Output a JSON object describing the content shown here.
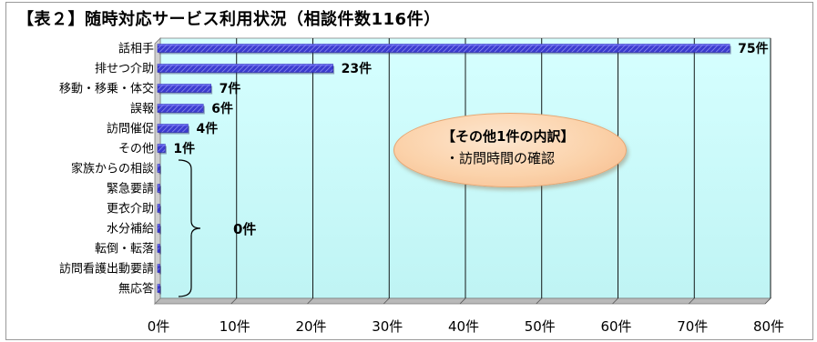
{
  "chart_data": {
    "type": "bar",
    "orientation": "horizontal",
    "title": "【表２】随時対応サービス利用状況（相談件数116件）",
    "categories": [
      "話相手",
      "排せつ介助",
      "移動・移乗・体交",
      "誤報",
      "訪問催促",
      "その他",
      "家族からの相談",
      "緊急要請",
      "更衣介助",
      "水分補給",
      "転倒・転落",
      "訪問看護出動要請",
      "無応答"
    ],
    "values": [
      75,
      23,
      7,
      6,
      4,
      1,
      0,
      0,
      0,
      0,
      0,
      0,
      0
    ],
    "value_labels": [
      "75件",
      "23件",
      "7件",
      "6件",
      "4件",
      "1件",
      "",
      "",
      "",
      "",
      "",
      "",
      ""
    ],
    "xlim": [
      0,
      80
    ],
    "x_ticks": [
      0,
      10,
      20,
      30,
      40,
      50,
      60,
      70,
      80
    ],
    "x_tick_labels": [
      "0件",
      "10件",
      "20件",
      "30件",
      "40件",
      "50件",
      "60件",
      "70件",
      "80件"
    ],
    "grid": "vertical",
    "group_annotation": "0件",
    "colors": {
      "bar": "#3333cc",
      "plot_bg": "#ccffff",
      "grid": "#000000"
    }
  },
  "note": {
    "title": "【その他1件の内訳】",
    "item": "・訪問時間の確認"
  }
}
